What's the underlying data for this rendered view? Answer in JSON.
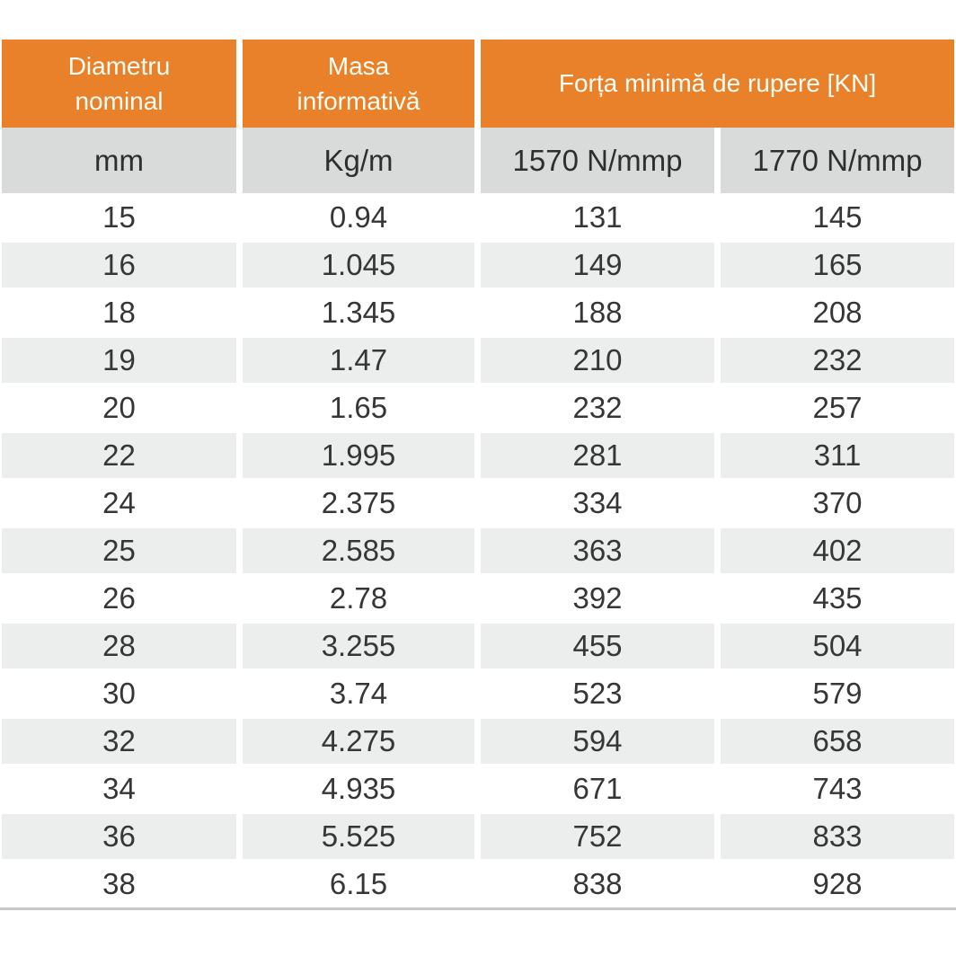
{
  "colors": {
    "header_bg": "#E8812A",
    "header_text": "#FDFDF6",
    "subheader_bg": "#D9DADA",
    "row_alt_bg": "#ECEDED",
    "data_text": "#363636",
    "bottom_rule": "#C6C7C7"
  },
  "chart_data": {
    "type": "table",
    "header_groups": [
      {
        "label": "Diametru\nnominal",
        "span": 1
      },
      {
        "label": "Masa\ninformativă",
        "span": 1
      },
      {
        "label": "Forța minimă de rupere  [KN]",
        "span": 2
      }
    ],
    "subheaders": [
      "mm",
      "Kg/m",
      "1570 N/mmp",
      "1770 N/mmp"
    ],
    "rows": [
      [
        "15",
        "0.94",
        "131",
        "145"
      ],
      [
        "16",
        "1.045",
        "149",
        "165"
      ],
      [
        "18",
        "1.345",
        "188",
        "208"
      ],
      [
        "19",
        "1.47",
        "210",
        "232"
      ],
      [
        "20",
        "1.65",
        "232",
        "257"
      ],
      [
        "22",
        "1.995",
        "281",
        "311"
      ],
      [
        "24",
        "2.375",
        "334",
        "370"
      ],
      [
        "25",
        "2.585",
        "363",
        "402"
      ],
      [
        "26",
        "2.78",
        "392",
        "435"
      ],
      [
        "28",
        "3.255",
        "455",
        "504"
      ],
      [
        "30",
        "3.74",
        "523",
        "579"
      ],
      [
        "32",
        "4.275",
        "594",
        "658"
      ],
      [
        "34",
        "4.935",
        "671",
        "743"
      ],
      [
        "36",
        "5.525",
        "752",
        "833"
      ],
      [
        "38",
        "6.15",
        "838",
        "928"
      ]
    ]
  }
}
